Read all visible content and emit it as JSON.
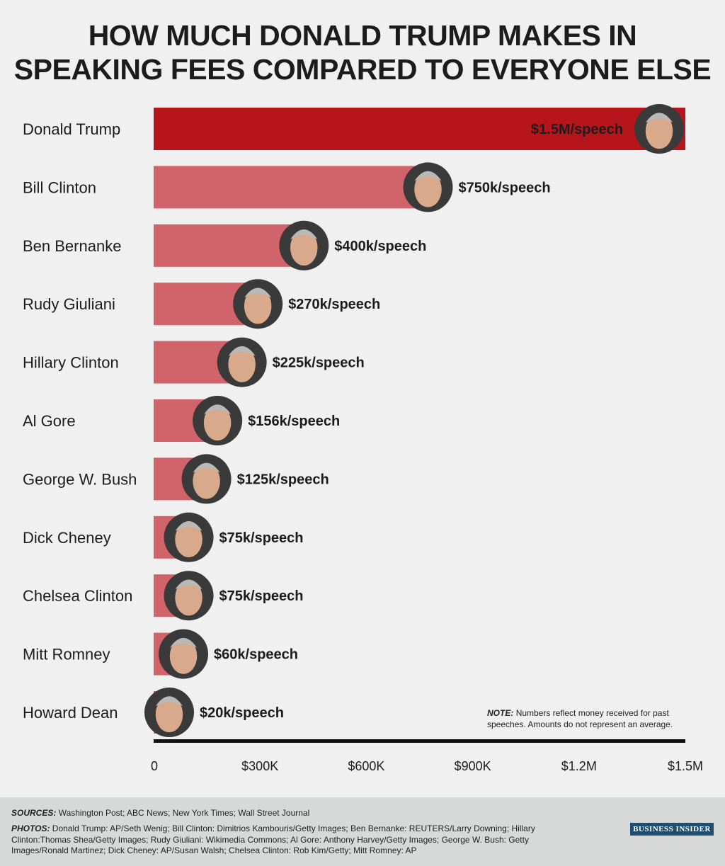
{
  "title_lines": [
    "HOW MUCH DONALD TRUMP MAKES IN",
    "SPEAKING FEES COMPARED TO EVERYONE ELSE"
  ],
  "colors": {
    "highlight_bar": "#b5151b",
    "bar": "#d1636a",
    "axis": "#111111",
    "footer_bg": "#d7d9d9",
    "brand_bg": "#1f4e6e"
  },
  "chart_data": {
    "type": "bar",
    "orientation": "horizontal",
    "title": "HOW MUCH DONALD TRUMP MAKES IN SPEAKING FEES COMPARED TO EVERYONE ELSE",
    "categories": [
      "Donald Trump",
      "Bill Clinton",
      "Ben Bernanke",
      "Rudy Giuliani",
      "Hillary Clinton",
      "Al Gore",
      "George W. Bush",
      "Dick Cheney",
      "Chelsea Clinton",
      "Mitt Romney",
      "Howard Dean"
    ],
    "values": [
      1500000,
      750000,
      400000,
      270000,
      225000,
      156000,
      125000,
      75000,
      75000,
      60000,
      20000
    ],
    "value_labels": [
      "$1.5M/speech",
      "$750k/speech",
      "$400k/speech",
      "$270k/speech",
      "$225k/speech",
      "$156k/speech",
      "$125k/speech",
      "$75k/speech",
      "$75k/speech",
      "$60k/speech",
      "$20k/speech"
    ],
    "xlim": [
      0,
      1500000
    ],
    "xticks": [
      0,
      300000,
      600000,
      900000,
      1200000,
      1500000
    ],
    "xtick_labels": [
      "0",
      "$300K",
      "$600K",
      "$900K",
      "$1.2M",
      "$1.5M"
    ],
    "highlight": "Donald Trump",
    "grid": false
  },
  "note": {
    "label": "NOTE:",
    "text": "Numbers reflect money received for past speeches. Amounts do not represent an average."
  },
  "footer": {
    "sources_label": "SOURCES:",
    "sources_text": "Washington Post; ABC News; New York Times; Wall Street Journal",
    "photos_label": "PHOTOS:",
    "photos_text": "Donald Trump: AP/Seth Wenig; Bill Clinton: Dimitrios Kambouris/Getty Images; Ben Bernanke: REUTERS/Larry Downing; Hillary Clinton:Thomas Shea/Getty Images;  Rudy Giuliani: Wikimedia Commons; Al Gore: Anthony Harvey/Getty Images; George W. Bush: Getty Images/Ronald Martinez; Dick Cheney: AP/Susan Walsh; Chelsea Clinton: Rob Kim/Getty; Mitt Romney: AP",
    "brand": "BUSINESS INSIDER"
  }
}
